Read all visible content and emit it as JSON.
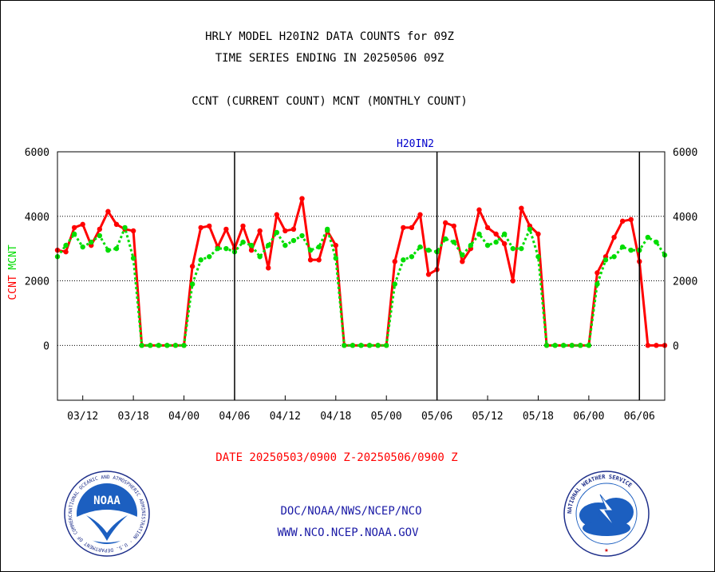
{
  "header": {
    "title_line1": "HRLY MODEL H20IN2 DATA COUNTS for 09Z",
    "title_line2": "TIME SERIES ENDING IN 20250506 09Z",
    "subtitle": "CCNT (CURRENT COUNT) MCNT (MONTHLY COUNT)"
  },
  "footer": {
    "date_range": "DATE 20250503/0900 Z-20250506/0900 Z",
    "org_line": "DOC/NOAA/NWS/NCEP/NCO",
    "url_line": "WWW.NCO.NCEP.NOAA.GOV"
  },
  "logos": {
    "noaa_text": "NOAA",
    "noaa_ring_text": "NATIONAL OCEANIC AND ATMOSPHERIC ADMINISTRATION · U.S. DEPARTMENT OF COMMERCE",
    "nws_ring_text": "NATIONAL WEATHER SERVICE"
  },
  "colors": {
    "ccnt": "#ff0000",
    "mcnt": "#00dd00",
    "panel_title": "#0000cc",
    "footer_blue": "#1a1aa6"
  },
  "chart_data": {
    "type": "line",
    "title": "H20IN2",
    "ylabel_left_series1": "CCNT",
    "ylabel_left_series2": "MCNT",
    "ylim": [
      -1700,
      6000
    ],
    "yticks": [
      0,
      2000,
      4000,
      6000
    ],
    "yticks_right": [
      0,
      2000,
      4000,
      6000
    ],
    "grid_y": [
      2000,
      4000
    ],
    "x_tick_labels": [
      "03/12",
      "03/18",
      "04/00",
      "04/06",
      "04/12",
      "04/18",
      "05/00",
      "05/06",
      "05/12",
      "05/18",
      "06/00",
      "06/06"
    ],
    "x_tick_hours": [
      3,
      9,
      15,
      21,
      27,
      33,
      39,
      45,
      51,
      57,
      63,
      69
    ],
    "day_boundaries_hours": [
      21,
      45,
      69
    ],
    "x_range_hours": [
      0,
      72
    ],
    "series": [
      {
        "name": "CCNT",
        "style": "solid",
        "values": [
          2950,
          2900,
          3650,
          3750,
          3100,
          3600,
          4150,
          3750,
          3600,
          3550,
          0,
          0,
          0,
          0,
          0,
          0,
          2450,
          3650,
          3700,
          3050,
          3600,
          3000,
          3700,
          2950,
          3550,
          2400,
          4050,
          3550,
          3600,
          4550,
          2650,
          2650,
          3550,
          3100,
          0,
          0,
          0,
          0,
          0,
          0,
          2600,
          3650,
          3650,
          4050,
          2200,
          2350,
          3800,
          3700,
          2600,
          3000,
          4200,
          3650,
          3450,
          3150,
          2000,
          4250,
          3700,
          3450,
          0,
          0,
          0,
          0,
          0,
          0,
          2250,
          2750,
          3350,
          3850,
          3900,
          2600,
          0,
          0,
          0
        ]
      },
      {
        "name": "MCNT",
        "style": "dotted",
        "values": [
          2750,
          3100,
          3450,
          3050,
          3200,
          3400,
          2950,
          3000,
          3650,
          2700,
          0,
          0,
          0,
          0,
          0,
          0,
          1900,
          2650,
          2750,
          3000,
          3000,
          2900,
          3200,
          3100,
          2750,
          3100,
          3500,
          3100,
          3250,
          3400,
          2950,
          3050,
          3600,
          2700,
          0,
          0,
          0,
          0,
          0,
          0,
          1900,
          2650,
          2750,
          3050,
          2950,
          2900,
          3300,
          3200,
          2800,
          3100,
          3450,
          3100,
          3200,
          3450,
          3000,
          3000,
          3600,
          2750,
          0,
          0,
          0,
          0,
          0,
          0,
          1900,
          2650,
          2750,
          3050,
          2950,
          2950,
          3350,
          3200,
          2800
        ]
      }
    ]
  }
}
